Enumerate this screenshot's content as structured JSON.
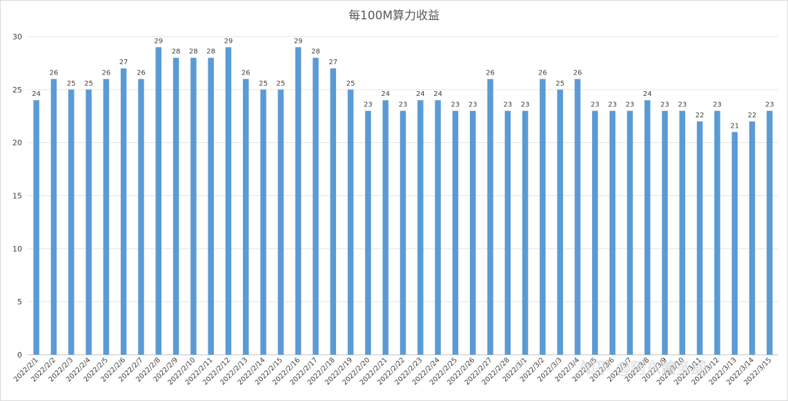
{
  "chart_data": {
    "type": "bar",
    "title": "每100M算力收益",
    "xlabel": "",
    "ylabel": "",
    "ylim": [
      0,
      30
    ],
    "yticks": [
      0,
      5,
      10,
      15,
      20,
      25,
      30
    ],
    "grid": true,
    "color": "#5b9bd5",
    "categories": [
      "2022/2/1",
      "2022/2/2",
      "2022/2/3",
      "2022/2/4",
      "2022/2/5",
      "2022/2/6",
      "2022/2/7",
      "2022/2/8",
      "2022/2/9",
      "2022/2/10",
      "2022/2/11",
      "2022/2/12",
      "2022/2/13",
      "2022/2/14",
      "2022/2/15",
      "2022/2/16",
      "2022/2/17",
      "2022/2/18",
      "2022/2/19",
      "2022/2/20",
      "2022/2/21",
      "2022/2/22",
      "2022/2/23",
      "2022/2/24",
      "2022/2/25",
      "2022/2/26",
      "2022/2/27",
      "2022/2/28",
      "2022/3/1",
      "2022/3/2",
      "2022/3/3",
      "2022/3/4",
      "2022/3/5",
      "2022/3/6",
      "2022/3/7",
      "2022/3/8",
      "2022/3/9",
      "2022/3/10",
      "2022/3/11",
      "2022/3/12",
      "2022/3/13",
      "2022/3/14",
      "2022/3/15"
    ],
    "values": [
      24,
      26,
      25,
      25,
      26,
      27,
      26,
      29,
      28,
      28,
      28,
      29,
      26,
      25,
      25,
      29,
      28,
      27,
      25,
      23,
      24,
      23,
      24,
      24,
      23,
      23,
      26,
      23,
      23,
      26,
      25,
      26,
      23,
      23,
      23,
      24,
      23,
      23,
      22,
      23,
      21,
      22,
      23
    ]
  },
  "watermark": "知乎 @阿东酱多威"
}
